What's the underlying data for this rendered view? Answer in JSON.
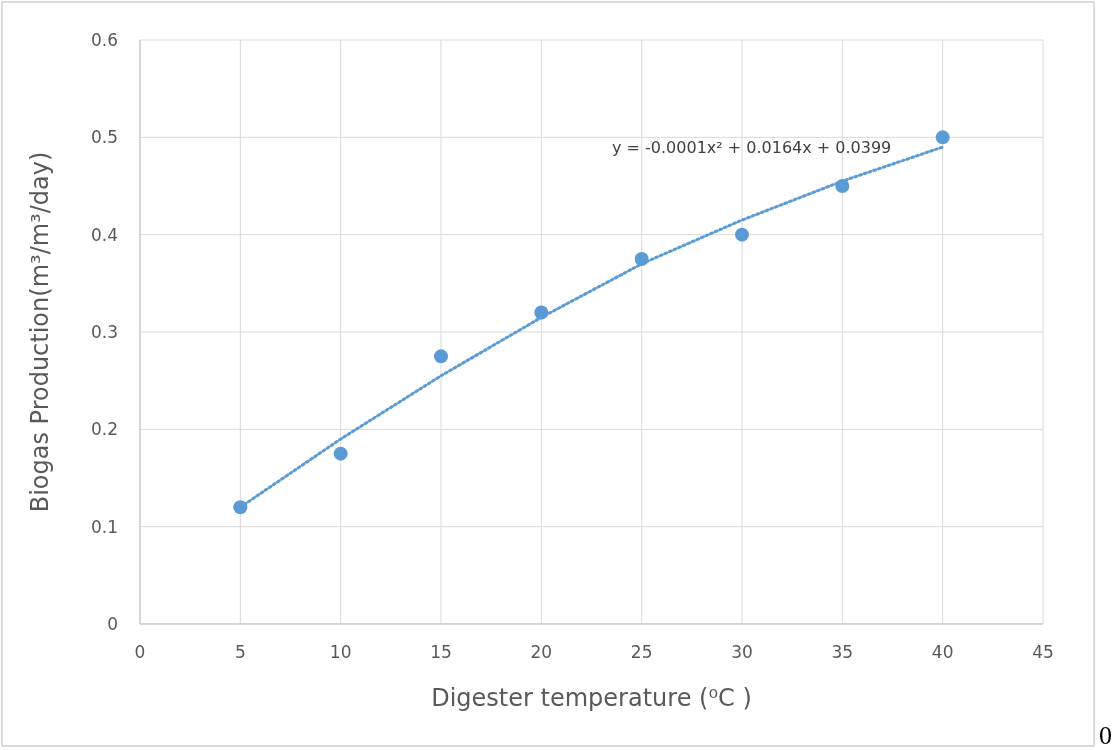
{
  "chart_data": {
    "type": "scatter",
    "xlabel": "Digester temperature  (⁰C )",
    "ylabel": "Biogas Production(m³/m³/day)",
    "x": [
      5,
      10,
      15,
      20,
      25,
      30,
      35,
      40
    ],
    "series": [
      {
        "color": "#5b9bd5",
        "marker": "circle",
        "values": [
          0.12,
          0.175,
          0.275,
          0.32,
          0.375,
          0.4,
          0.45,
          0.5
        ]
      },
      {
        "type": "line",
        "color": "#5b9bd5",
        "marker": "none",
        "line_style": "dotted",
        "x": [
          5,
          10,
          15,
          20,
          25,
          30,
          35,
          40
        ],
        "values": [
          0.12,
          0.19,
          0.255,
          0.315,
          0.37,
          0.415,
          0.455,
          0.49
        ]
      }
    ],
    "annotations": [
      "y = -0.0001x² + 0.0164x + 0.0399",
      "0"
    ],
    "xlim": [
      0,
      45
    ],
    "xticks": [
      0,
      5,
      10,
      15,
      20,
      25,
      30,
      35,
      40,
      45
    ],
    "ylim": [
      0,
      0.6
    ],
    "yticks": [
      0,
      0.1,
      0.2,
      0.3,
      0.4,
      0.5,
      0.6
    ],
    "grid": true
  }
}
